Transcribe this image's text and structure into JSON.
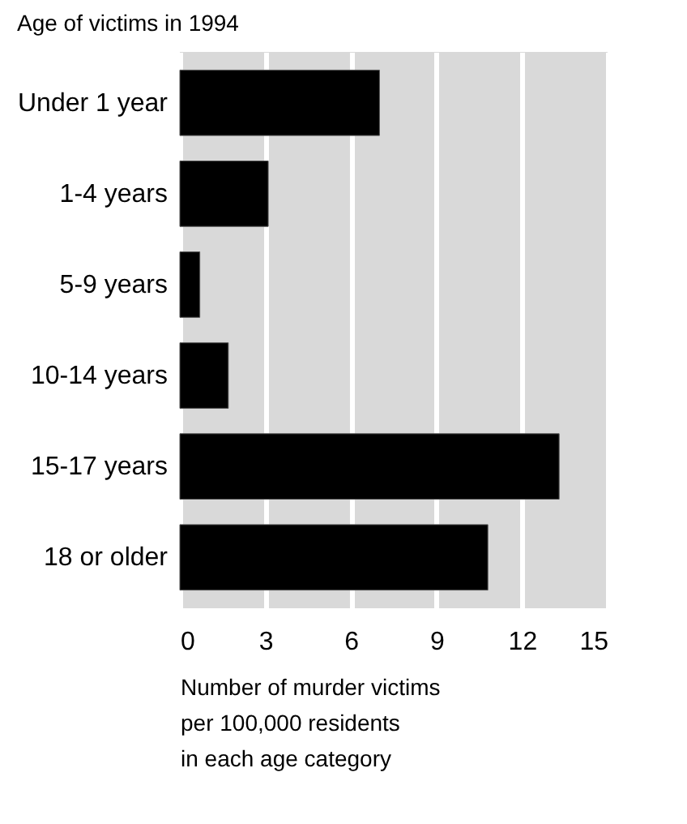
{
  "chart_data": {
    "type": "bar",
    "orientation": "horizontal",
    "title": "Age of victims in 1994",
    "xlabel": "Number of murder victims\nper 100,000 residents\nin each age category",
    "categories": [
      "Under 1 year",
      "1-4 years",
      "5-9 years",
      "10-14 years",
      "15-17 years",
      "18 or older"
    ],
    "values": [
      7.0,
      3.1,
      0.7,
      1.7,
      13.3,
      10.8
    ],
    "color": "#000000",
    "xlim": [
      0,
      15
    ],
    "xticks": [
      0,
      3,
      6,
      9,
      12,
      15
    ],
    "grid": "x"
  }
}
